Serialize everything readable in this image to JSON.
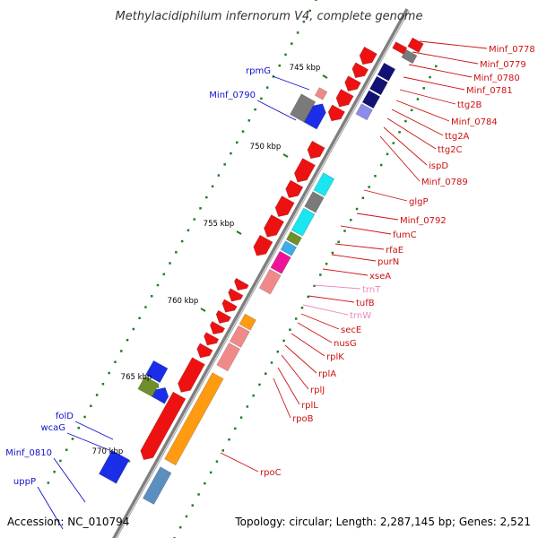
{
  "title": "Methylacidiphilum infernorum V4, complete genome",
  "footer": {
    "accession": "Accession: NC_010794",
    "topology": "Topology: circular; Length: 2,287,145 bp; Genes: 2,521"
  },
  "colors": {
    "red": "#ee1111",
    "navy": "#121276",
    "lavender": "#8c8ce8",
    "gray": "#7a7a7a",
    "cyan": "#19e6ee",
    "olive": "#6f8f2a",
    "sky": "#3aaee8",
    "magenta": "#ee1499",
    "pink": "#f08a8a",
    "orange": "#ff9b11",
    "blue": "#1a2ee8",
    "steel": "#5a8fbf",
    "label_red": "#cc1111",
    "label_pink": "#ee88bb",
    "label_blue": "#1111cc"
  },
  "ticks": [
    "745 kbp",
    "750 kbp",
    "755 kbp",
    "760 kbp",
    "765 kbp",
    "770 kbp"
  ],
  "right_labels": [
    "Minf_0778",
    "Minf_0779",
    "Minf_0780",
    "Minf_0781",
    "ttg2B",
    "Minf_0784",
    "ttg2A",
    "ttg2C",
    "ispD",
    "Minf_0789",
    "glgP",
    "Minf_0792",
    "fumC",
    "rfaE",
    "purN",
    "xseA",
    "trnT",
    "tufB",
    "trnW",
    "secE",
    "nusG",
    "rplK",
    "rplA",
    "rplJ",
    "rplL",
    "rpoB",
    "rpoC"
  ],
  "left_labels": [
    "rpmG",
    "Minf_0790",
    "folD",
    "wcaG",
    "Minf_0810",
    "uppP"
  ]
}
